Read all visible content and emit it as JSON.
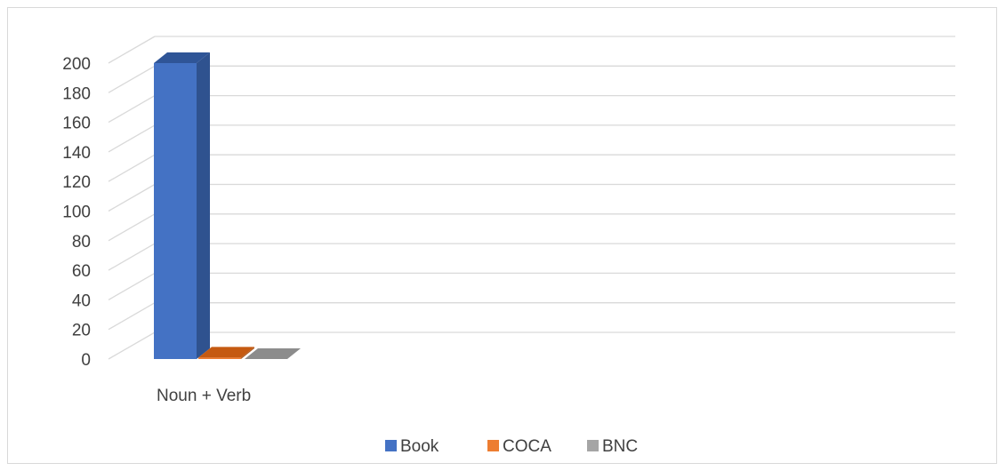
{
  "chart_data": {
    "type": "bar",
    "style": "3d-column",
    "categories": [
      "Noun + Verb"
    ],
    "series": [
      {
        "name": "Book",
        "values": [
          200
        ],
        "color": "#4472c4",
        "side_color": "#2f528f",
        "top_color": "#2f5597"
      },
      {
        "name": "COCA",
        "values": [
          1
        ],
        "color": "#ed7d31",
        "side_color": "#ae5a21",
        "top_color": "#c55a11"
      },
      {
        "name": "BNC",
        "values": [
          0
        ],
        "color": "#a5a5a5",
        "side_color": "#7b7b7b",
        "top_color": "#8c8c8c"
      }
    ],
    "yticks": [
      "0",
      "20",
      "40",
      "60",
      "80",
      "100",
      "120",
      "140",
      "160",
      "180",
      "200"
    ],
    "ylim": [
      0,
      200
    ],
    "title": "",
    "xlabel": "",
    "ylabel": "",
    "grid": true,
    "legend_position": "bottom",
    "gridline_color": "#d9d9d9"
  }
}
